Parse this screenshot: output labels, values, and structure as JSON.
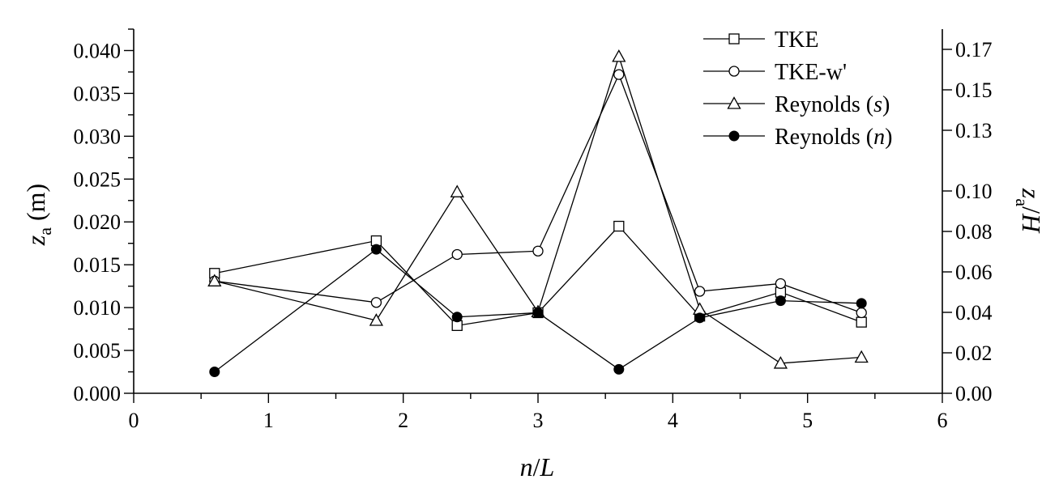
{
  "chart_data": {
    "type": "line",
    "xlabel": {
      "italic": "n",
      "text": "/",
      "italic2": "L"
    },
    "ylabel_left": {
      "italic": "z",
      "sub": "a",
      "text": " (m)"
    },
    "ylabel_right": {
      "italic": "z",
      "sub": "a",
      "text": "/",
      "italic2": "H"
    },
    "xlim": [
      0,
      6
    ],
    "ylim_left": [
      0,
      0.0425
    ],
    "ylim_right": [
      0,
      0.18
    ],
    "x_ticks": [
      "0",
      "1",
      "2",
      "3",
      "4",
      "5",
      "6"
    ],
    "y_left_ticks": [
      "0.000",
      "0.005",
      "0.010",
      "0.015",
      "0.020",
      "0.025",
      "0.030",
      "0.035",
      "0.040"
    ],
    "y_right_ticks": [
      "0.00",
      "0.02",
      "0.04",
      "0.06",
      "0.08",
      "0.10",
      "0.13",
      "0.15",
      "0.17"
    ],
    "legend_position": "top-right",
    "series": [
      {
        "name": "TKE",
        "label": {
          "text": "TKE"
        },
        "marker": "open-square",
        "x": [
          0.6,
          1.8,
          2.4,
          3.0,
          3.6,
          4.2,
          4.8,
          5.4
        ],
        "values": [
          0.014,
          0.0178,
          0.0079,
          0.0094,
          0.0195,
          0.009,
          0.0118,
          0.0083
        ]
      },
      {
        "name": "TKE-w'",
        "label": {
          "text": "TKE-w'"
        },
        "marker": "open-circle",
        "x": [
          0.6,
          1.8,
          2.4,
          3.0,
          3.6,
          4.2,
          4.8,
          5.4
        ],
        "values": [
          0.0131,
          0.0106,
          0.0162,
          0.0166,
          0.0372,
          0.0119,
          0.0128,
          0.0094
        ]
      },
      {
        "name": "Reynolds (s)",
        "label": {
          "text": "Reynolds (",
          "italic": "s",
          "text2": ")"
        },
        "marker": "open-triangle",
        "x": [
          0.6,
          1.8,
          2.4,
          3.0,
          3.6,
          4.2,
          4.8,
          5.4
        ],
        "values": [
          0.0131,
          0.0085,
          0.0235,
          0.0095,
          0.0393,
          0.0098,
          0.0035,
          0.0042
        ]
      },
      {
        "name": "Reynolds (n)",
        "label": {
          "text": "Reynolds (",
          "italic": "n",
          "text2": ")"
        },
        "marker": "filled-circle",
        "x": [
          0.6,
          1.8,
          2.4,
          3.0,
          3.6,
          4.2,
          4.8,
          5.4
        ],
        "values": [
          0.0025,
          0.0168,
          0.0089,
          0.0094,
          0.0028,
          0.0088,
          0.0108,
          0.0105
        ]
      }
    ]
  }
}
